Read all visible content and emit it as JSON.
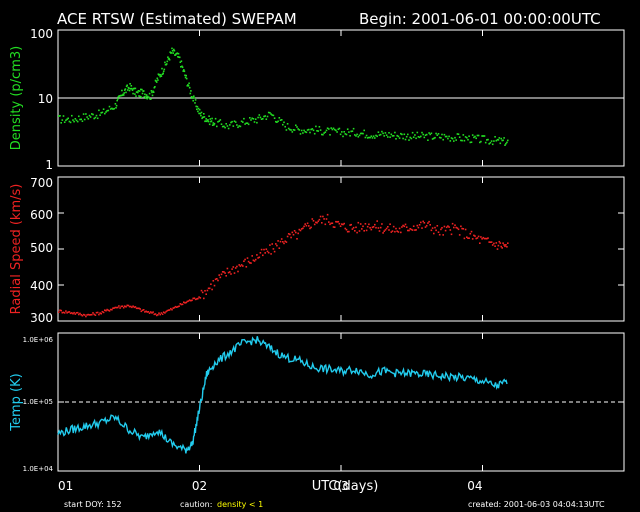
{
  "header": {
    "title": "ACE RTSW (Estimated) SWEPAM",
    "begin": "Begin: 2001-06-01 00:00:00UTC"
  },
  "footer": {
    "start_doy": "start DOY: 152",
    "caution_label": "caution:",
    "caution_value": "density < 1",
    "created": "created: 2001-06-03 04:04:13UTC"
  },
  "x_axis": {
    "label": "UTC(days)",
    "ticks": [
      "01",
      "02",
      "03",
      "04"
    ],
    "range_days": [
      0,
      3
    ]
  },
  "colors": {
    "background": "#000000",
    "axes": "#ffffff",
    "density": "#22dd22",
    "speed": "#ee2222",
    "temp": "#22ccee",
    "caution_value": "#ffff00"
  },
  "chart_data": [
    {
      "type": "scatter",
      "ylabel": "Density (p/cm3)",
      "scale": "log",
      "ylim": [
        1,
        100
      ],
      "yticks": [
        "1",
        "10",
        "100"
      ],
      "reference_line": 10,
      "series": [
        {
          "x": [
            0.0,
            0.1,
            0.2,
            0.3,
            0.4,
            0.45,
            0.5,
            0.55,
            0.6,
            0.65,
            0.7,
            0.75,
            0.8,
            0.85,
            0.9,
            0.95,
            1.0,
            1.05,
            1.1,
            1.2,
            1.3,
            1.4,
            1.5,
            1.6,
            1.7,
            1.8,
            1.9,
            2.0,
            2.1,
            2.2,
            2.3,
            2.4,
            2.5,
            2.6,
            2.7,
            2.8,
            2.9,
            3.0,
            3.1,
            3.18
          ],
          "y": [
            5,
            5,
            5.5,
            6,
            8,
            12,
            15,
            12,
            12,
            11,
            20,
            30,
            50,
            40,
            20,
            10,
            6,
            5,
            4.5,
            4,
            4.5,
            5,
            6,
            4,
            3.5,
            3.5,
            3.3,
            3.2,
            3.2,
            3,
            3,
            2.9,
            2.8,
            2.8,
            2.8,
            2.7,
            2.6,
            2.5,
            2.4,
            2.3
          ]
        }
      ]
    },
    {
      "type": "scatter",
      "ylabel": "Radial Speed (km/s)",
      "scale": "linear",
      "ylim": [
        300,
        700
      ],
      "yticks": [
        "300",
        "400",
        "500",
        "600",
        "700"
      ],
      "series": [
        {
          "x": [
            0.0,
            0.1,
            0.2,
            0.3,
            0.4,
            0.5,
            0.6,
            0.7,
            0.8,
            0.9,
            1.0,
            1.1,
            1.2,
            1.3,
            1.4,
            1.5,
            1.6,
            1.7,
            1.8,
            1.9,
            2.0,
            2.1,
            2.2,
            2.3,
            2.4,
            2.5,
            2.6,
            2.7,
            2.8,
            2.9,
            3.0,
            3.1,
            3.18
          ],
          "y": [
            330,
            325,
            318,
            325,
            340,
            345,
            330,
            320,
            335,
            355,
            370,
            410,
            440,
            460,
            480,
            500,
            530,
            545,
            580,
            585,
            565,
            560,
            570,
            560,
            555,
            565,
            570,
            550,
            560,
            540,
            525,
            515,
            510
          ]
        }
      ]
    },
    {
      "type": "line",
      "ylabel": "Temp (K)",
      "scale": "log",
      "ylim": [
        10000,
        1000000
      ],
      "yticks": [
        "1.0E+04",
        "1.0E+05",
        "1.0E+06"
      ],
      "reference_line": 100000,
      "series": [
        {
          "x": [
            0.0,
            0.1,
            0.2,
            0.3,
            0.4,
            0.5,
            0.6,
            0.7,
            0.8,
            0.9,
            0.95,
            1.0,
            1.05,
            1.1,
            1.2,
            1.3,
            1.4,
            1.5,
            1.6,
            1.7,
            1.8,
            1.9,
            2.0,
            2.1,
            2.2,
            2.3,
            2.4,
            2.5,
            2.6,
            2.7,
            2.8,
            2.9,
            3.0,
            3.1,
            3.18
          ],
          "y": [
            35000,
            40000,
            45000,
            50000,
            60000,
            40000,
            30000,
            40000,
            25000,
            20000,
            25000,
            80000,
            250000,
            350000,
            500000,
            700000,
            800000,
            600000,
            450000,
            400000,
            320000,
            300000,
            280000,
            300000,
            250000,
            280000,
            260000,
            260000,
            250000,
            240000,
            230000,
            220000,
            200000,
            170000,
            200000
          ]
        }
      ]
    }
  ]
}
